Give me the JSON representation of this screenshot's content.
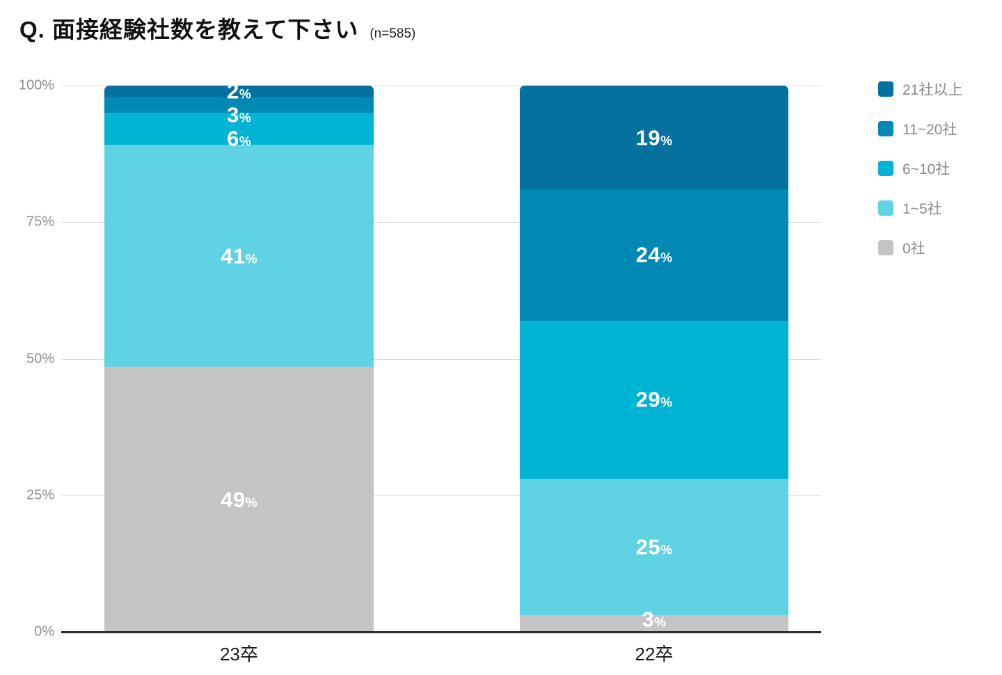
{
  "title": "Q. 面接経験社数を教えて下さい",
  "sample_note": "(n=585)",
  "chart_data": {
    "type": "bar",
    "stacked": true,
    "orientation": "vertical",
    "unit": "%",
    "categories": [
      "23卒",
      "22卒"
    ],
    "series": [
      {
        "name": "21社以上",
        "color": "#04719e",
        "values": [
          2,
          19
        ]
      },
      {
        "name": "11~20社",
        "color": "#0289b3",
        "values": [
          3,
          24
        ]
      },
      {
        "name": "6~10社",
        "color": "#00b4d4",
        "values": [
          6,
          29
        ]
      },
      {
        "name": "1~5社",
        "color": "#5fd2e4",
        "values": [
          41,
          25
        ]
      },
      {
        "name": "0社",
        "color": "#c4c4c4",
        "values": [
          49,
          3
        ]
      }
    ],
    "yticks": [
      "0%",
      "25%",
      "50%",
      "75%",
      "100%"
    ],
    "ylim": [
      0,
      100
    ],
    "grid": true,
    "legend_position": "right"
  },
  "style": {
    "background": "#ffffff",
    "grid_color": "#d8d8d8",
    "baseline_color": "#2a2a2a",
    "axis_text_color": "#8f8f8f",
    "legend_text_color": "#8a8a8a",
    "title_color": "#111111",
    "xlabel_color": "#1a1a1a",
    "segment_label_color": "#ffffff"
  }
}
